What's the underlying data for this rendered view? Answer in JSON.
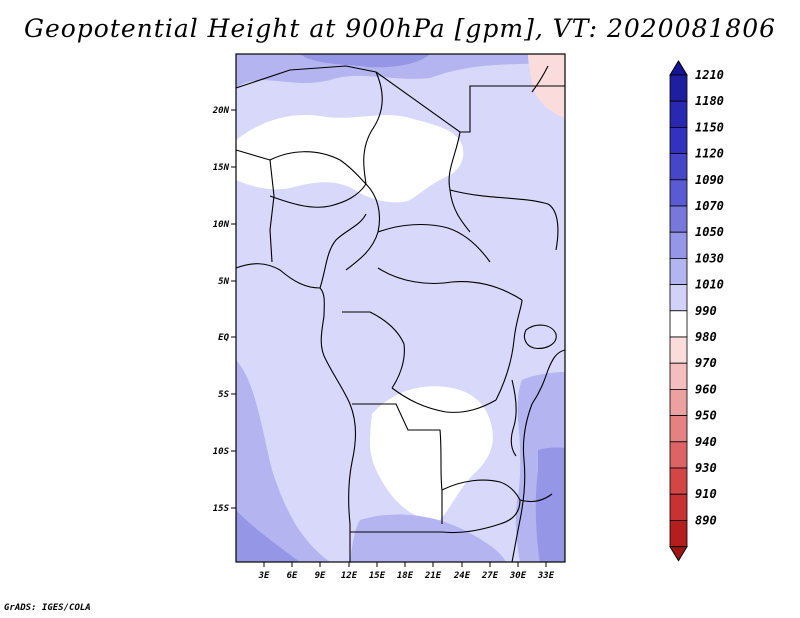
{
  "title": "Geopotential Height at 900hPa [gpm], VT: 2020081806",
  "credit": "GrADS: IGES/COLA",
  "map": {
    "lat_labels": [
      "20N",
      "15N",
      "10N",
      "5N",
      "EQ",
      "5S",
      "10S",
      "15S"
    ],
    "lon_labels": [
      "3E",
      "6E",
      "9E",
      "12E",
      "15E",
      "18E",
      "21E",
      "24E",
      "27E",
      "30E",
      "33E"
    ]
  },
  "colorbar": {
    "levels": [
      {
        "label": "1210",
        "color": "#1e1ea0"
      },
      {
        "label": "1180",
        "color": "#2828b0"
      },
      {
        "label": "1150",
        "color": "#3232be"
      },
      {
        "label": "1120",
        "color": "#4646c8"
      },
      {
        "label": "1090",
        "color": "#5a5ad2"
      },
      {
        "label": "1070",
        "color": "#7878dc"
      },
      {
        "label": "1050",
        "color": "#9696e6"
      },
      {
        "label": "1030",
        "color": "#b4b4f0"
      },
      {
        "label": "1010",
        "color": "#d2d2f8"
      },
      {
        "label": "990",
        "color": "#ffffff"
      },
      {
        "label": "980",
        "color": "#fadcdc"
      },
      {
        "label": "970",
        "color": "#f4bebe"
      },
      {
        "label": "960",
        "color": "#eca0a0"
      },
      {
        "label": "950",
        "color": "#e48282"
      },
      {
        "label": "940",
        "color": "#dc6464"
      },
      {
        "label": "930",
        "color": "#d24646"
      },
      {
        "label": "910",
        "color": "#c83232"
      },
      {
        "label": "890",
        "color": "#b41e1e"
      }
    ],
    "top_color": "#141496",
    "bottom_color": "#a01414"
  }
}
